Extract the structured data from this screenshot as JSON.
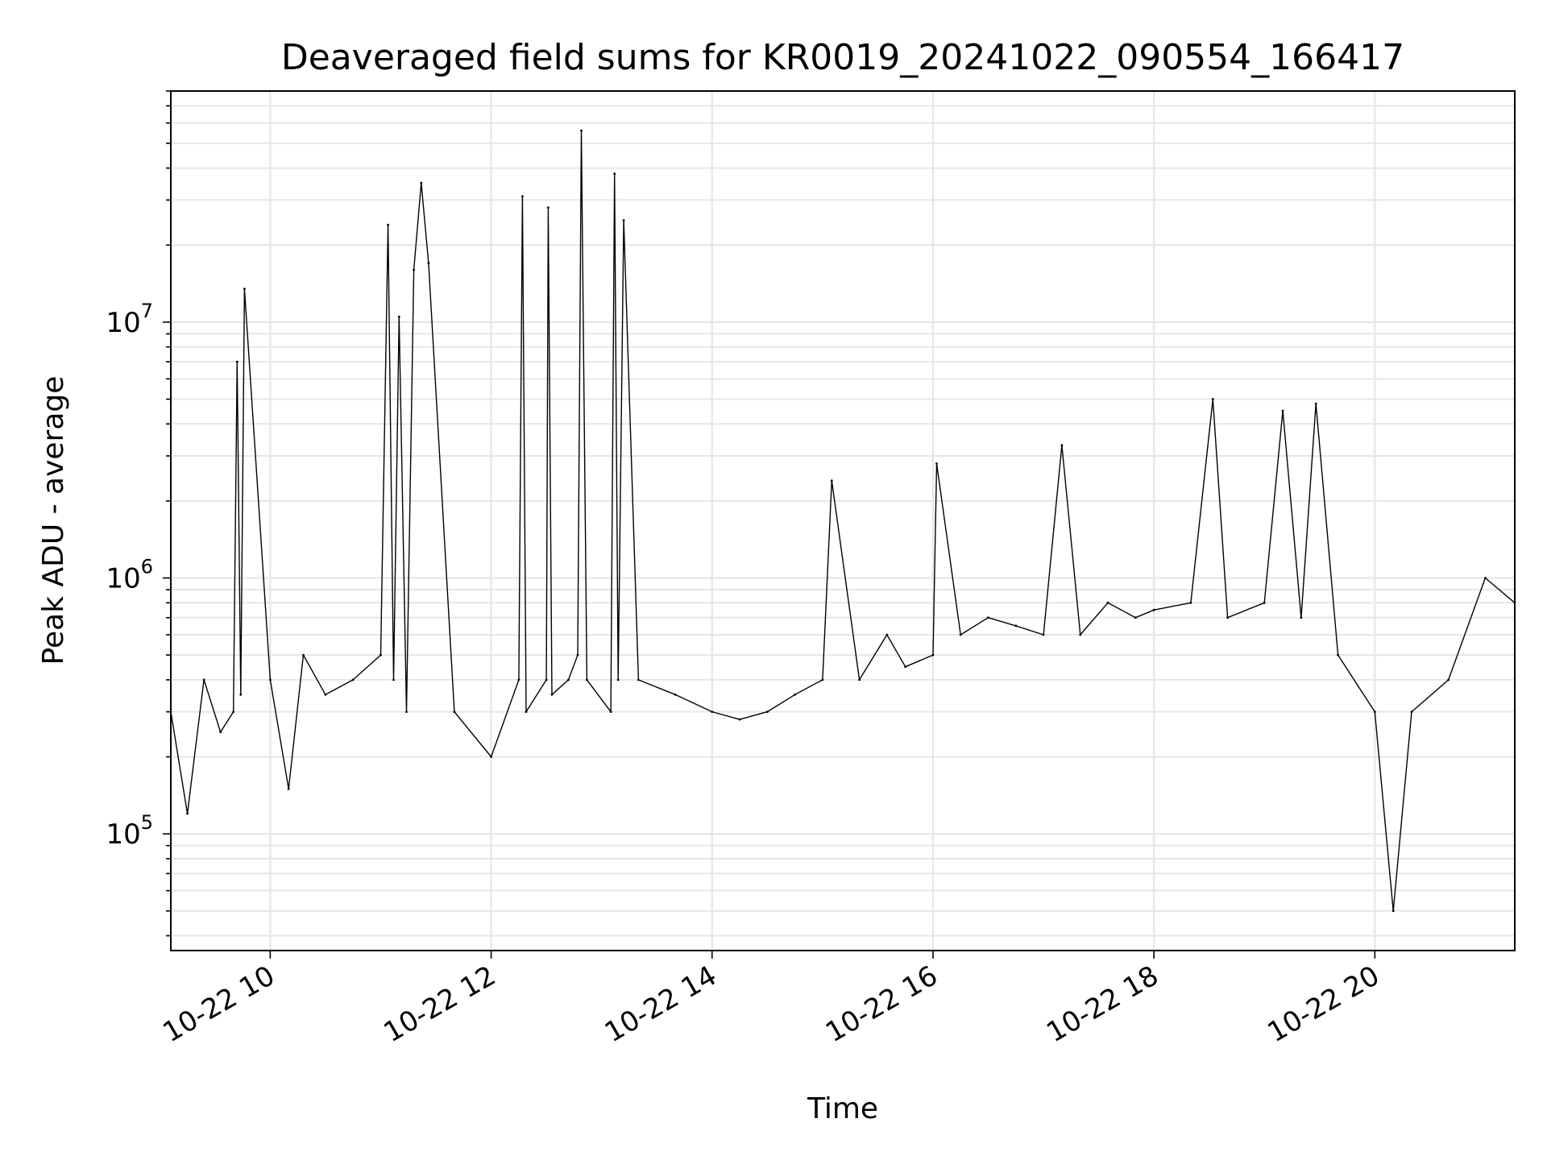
{
  "chart_data": {
    "type": "line",
    "title": "Deaveraged field sums for KR0019_20241022_090554_166417",
    "xlabel": "Time",
    "ylabel": "Peak ADU - average",
    "y_scale": "log",
    "ylim": [
      35000,
      80000000
    ],
    "xlim": [
      "2024-10-22 09:06",
      "2024-10-22 21:16"
    ],
    "grid": true,
    "line_color": "#000000",
    "grid_color": "#e6e6e6",
    "x_ticks": [
      {
        "x": "2024-10-22 10:00",
        "label": "10-22 10"
      },
      {
        "x": "2024-10-22 12:00",
        "label": "10-22 12"
      },
      {
        "x": "2024-10-22 14:00",
        "label": "10-22 14"
      },
      {
        "x": "2024-10-22 16:00",
        "label": "10-22 16"
      },
      {
        "x": "2024-10-22 18:00",
        "label": "10-22 18"
      },
      {
        "x": "2024-10-22 20:00",
        "label": "10-22 20"
      }
    ],
    "y_ticks": [
      {
        "value": 100000,
        "base": "10",
        "exp": "5"
      },
      {
        "value": 1000000,
        "base": "10",
        "exp": "6"
      },
      {
        "value": 10000000,
        "base": "10",
        "exp": "7"
      }
    ],
    "series": [
      {
        "x": [
          "2024-10-22 09:06",
          "2024-10-22 09:15",
          "2024-10-22 09:24",
          "2024-10-22 09:33",
          "2024-10-22 09:40",
          "2024-10-22 09:42",
          "2024-10-22 09:44",
          "2024-10-22 09:46",
          "2024-10-22 10:00",
          "2024-10-22 10:10",
          "2024-10-22 10:18",
          "2024-10-22 10:30",
          "2024-10-22 10:45",
          "2024-10-22 11:00",
          "2024-10-22 11:04",
          "2024-10-22 11:07",
          "2024-10-22 11:10",
          "2024-10-22 11:14",
          "2024-10-22 11:18",
          "2024-10-22 11:22",
          "2024-10-22 11:26",
          "2024-10-22 11:40",
          "2024-10-22 12:00",
          "2024-10-22 12:15",
          "2024-10-22 12:17",
          "2024-10-22 12:19",
          "2024-10-22 12:30",
          "2024-10-22 12:31",
          "2024-10-22 12:33",
          "2024-10-22 12:42",
          "2024-10-22 12:47",
          "2024-10-22 12:49",
          "2024-10-22 12:52",
          "2024-10-22 13:05",
          "2024-10-22 13:07",
          "2024-10-22 13:09",
          "2024-10-22 13:12",
          "2024-10-22 13:20",
          "2024-10-22 13:40",
          "2024-10-22 14:00",
          "2024-10-22 14:15",
          "2024-10-22 14:30",
          "2024-10-22 14:45",
          "2024-10-22 15:00",
          "2024-10-22 15:05",
          "2024-10-22 15:20",
          "2024-10-22 15:35",
          "2024-10-22 15:45",
          "2024-10-22 16:00",
          "2024-10-22 16:02",
          "2024-10-22 16:15",
          "2024-10-22 16:30",
          "2024-10-22 16:45",
          "2024-10-22 17:00",
          "2024-10-22 17:10",
          "2024-10-22 17:20",
          "2024-10-22 17:35",
          "2024-10-22 17:50",
          "2024-10-22 18:00",
          "2024-10-22 18:20",
          "2024-10-22 18:32",
          "2024-10-22 18:40",
          "2024-10-22 19:00",
          "2024-10-22 19:10",
          "2024-10-22 19:20",
          "2024-10-22 19:28",
          "2024-10-22 19:40",
          "2024-10-22 20:00",
          "2024-10-22 20:10",
          "2024-10-22 20:20",
          "2024-10-22 20:40",
          "2024-10-22 21:00",
          "2024-10-22 21:16"
        ],
        "y": [
          300000,
          120000,
          400000,
          250000,
          300000,
          7000000,
          350000,
          13500000,
          400000,
          150000,
          500000,
          350000,
          400000,
          500000,
          24000000,
          400000,
          10500000,
          300000,
          16000000,
          35000000,
          17000000,
          300000,
          200000,
          400000,
          31000000,
          300000,
          400000,
          28000000,
          350000,
          400000,
          500000,
          56000000,
          400000,
          300000,
          38000000,
          400000,
          25000000,
          400000,
          350000,
          300000,
          280000,
          300000,
          350000,
          400000,
          2400000,
          400000,
          600000,
          450000,
          500000,
          2800000,
          600000,
          700000,
          650000,
          600000,
          3300000,
          600000,
          800000,
          700000,
          750000,
          800000,
          5000000,
          700000,
          800000,
          4500000,
          700000,
          4800000,
          500000,
          300000,
          50000,
          300000,
          400000,
          1000000,
          800000
        ]
      }
    ]
  }
}
